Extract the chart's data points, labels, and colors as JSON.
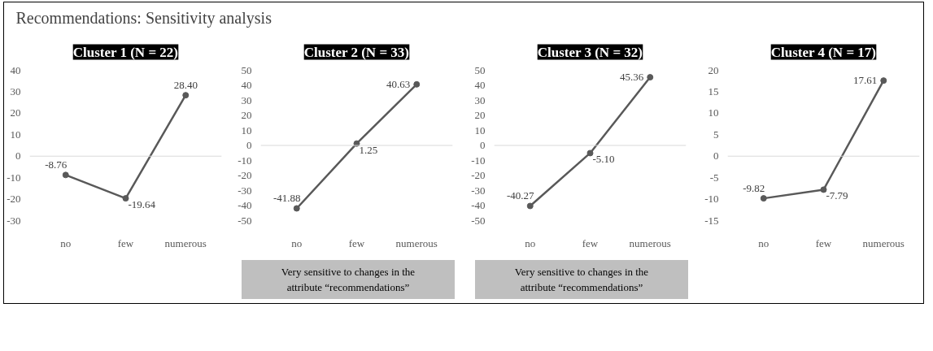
{
  "chart_data": [
    {
      "type": "other",
      "title": "Recommendations: Sensitivity analysis"
    },
    {
      "type": "line",
      "title": "Cluster 1 (N = 22)",
      "categories": [
        "no",
        "few",
        "numerous"
      ],
      "series": [
        {
          "color": "#595959",
          "values": [
            -8.76,
            -19.64,
            28.4
          ],
          "value_labels": [
            "-8.76",
            "-19.64",
            "28.40"
          ]
        }
      ],
      "ylim": [
        -30,
        40
      ],
      "yticks": [
        -30,
        -20,
        -10,
        0,
        10,
        20,
        30,
        40
      ],
      "marker": "circle",
      "line_style": "solid",
      "ref_lines": [
        {
          "axis": "y",
          "value": 0,
          "color": "#d9d9d9"
        }
      ]
    },
    {
      "type": "line",
      "title": "Cluster 2 (N = 33)",
      "categories": [
        "no",
        "few",
        "numerous"
      ],
      "series": [
        {
          "color": "#595959",
          "values": [
            -41.88,
            1.25,
            40.63
          ],
          "value_labels": [
            "-41.88",
            "1.25",
            "40.63"
          ]
        }
      ],
      "ylim": [
        -50,
        50
      ],
      "yticks": [
        -50,
        -40,
        -30,
        -20,
        -10,
        0,
        10,
        20,
        30,
        40,
        50
      ],
      "marker": "circle",
      "line_style": "solid",
      "ref_lines": [
        {
          "axis": "y",
          "value": 0,
          "color": "#d9d9d9"
        }
      ],
      "annotations": [
        "Very sensitive to changes in the attribute “recommendations”"
      ]
    },
    {
      "type": "line",
      "title": "Cluster 3 (N = 32)",
      "categories": [
        "no",
        "few",
        "numerous"
      ],
      "series": [
        {
          "color": "#595959",
          "values": [
            -40.27,
            -5.1,
            45.36
          ],
          "value_labels": [
            "-40.27",
            "-5.10",
            "45.36"
          ]
        }
      ],
      "ylim": [
        -50,
        50
      ],
      "yticks": [
        -50,
        -40,
        -30,
        -20,
        -10,
        0,
        10,
        20,
        30,
        40,
        50
      ],
      "marker": "circle",
      "line_style": "solid",
      "ref_lines": [
        {
          "axis": "y",
          "value": 0,
          "color": "#d9d9d9"
        }
      ],
      "annotations": [
        "Very sensitive to changes in the attribute “recommendations”"
      ]
    },
    {
      "type": "line",
      "title": "Cluster 4 (N = 17)",
      "categories": [
        "no",
        "few",
        "numerous"
      ],
      "series": [
        {
          "color": "#595959",
          "values": [
            -9.82,
            -7.79,
            17.61
          ],
          "value_labels": [
            "-9.82",
            "-7.79",
            "17.61"
          ]
        }
      ],
      "ylim": [
        -15,
        20
      ],
      "yticks": [
        -15,
        -10,
        -5,
        0,
        5,
        10,
        15,
        20
      ],
      "marker": "circle",
      "line_style": "solid",
      "ref_lines": [
        {
          "axis": "y",
          "value": 0,
          "color": "#d9d9d9"
        }
      ]
    }
  ]
}
